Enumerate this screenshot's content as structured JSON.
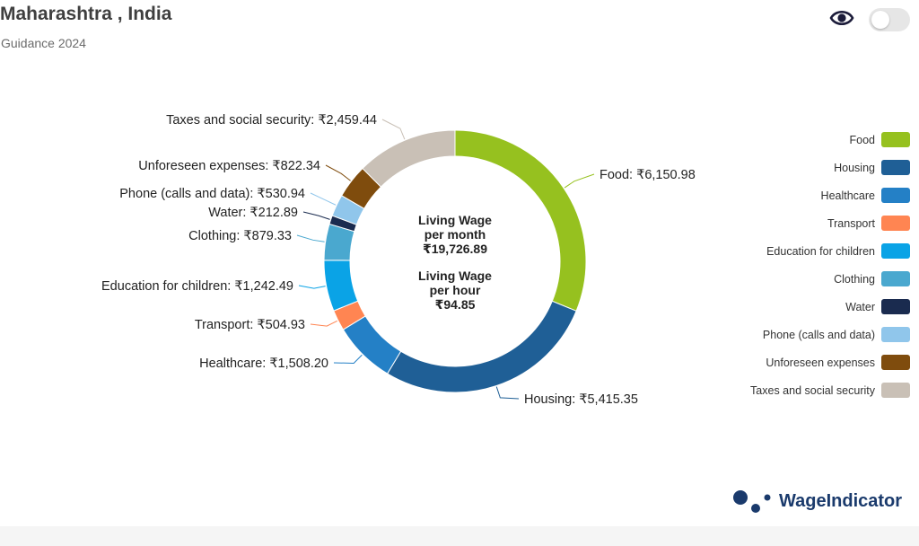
{
  "header": {
    "title": "Maharashtra , India",
    "subtitle": "Guidance 2024"
  },
  "controls": {
    "view_icon": "eye-icon",
    "toggle_state": "off"
  },
  "center": {
    "month_line1": "Living Wage",
    "month_line2": "per month",
    "month_value": "₹19,726.89",
    "hour_line1": "Living Wage",
    "hour_line2": "per hour",
    "hour_value": "₹94.85"
  },
  "brand": {
    "name": "WageIndicator",
    "color": "#1a3a6c"
  },
  "chart_data": {
    "type": "pie",
    "style": "donut",
    "legend_placement": "right",
    "slices": [
      {
        "name": "Food",
        "value": 6150.98,
        "label": "Food: ₹6,150.98",
        "color": "#96c11f"
      },
      {
        "name": "Housing",
        "value": 5415.35,
        "label": "Housing: ₹5,415.35",
        "color": "#1f5f96"
      },
      {
        "name": "Healthcare",
        "value": 1508.2,
        "label": "Healthcare: ₹1,508.20",
        "color": "#2480c6"
      },
      {
        "name": "Transport",
        "value": 504.93,
        "label": "Transport: ₹504.93",
        "color": "#ff8552"
      },
      {
        "name": "Education for children",
        "value": 1242.49,
        "label": "Education for children: ₹1,242.49",
        "color": "#0aa3e6"
      },
      {
        "name": "Clothing",
        "value": 879.33,
        "label": "Clothing: ₹879.33",
        "color": "#4aa8cf"
      },
      {
        "name": "Water",
        "value": 212.89,
        "label": "Water: ₹212.89",
        "color": "#1a2b4f"
      },
      {
        "name": "Phone (calls and data)",
        "value": 530.94,
        "label": "Phone (calls and data): ₹530.94",
        "color": "#90c6eb"
      },
      {
        "name": "Unforeseen expenses",
        "value": 822.34,
        "label": "Unforeseen expenses: ₹822.34",
        "color": "#7f4c0d"
      },
      {
        "name": "Taxes and social security",
        "value": 2459.44,
        "label": "Taxes and social security: ₹2,459.44",
        "color": "#c9c0b6"
      }
    ]
  }
}
